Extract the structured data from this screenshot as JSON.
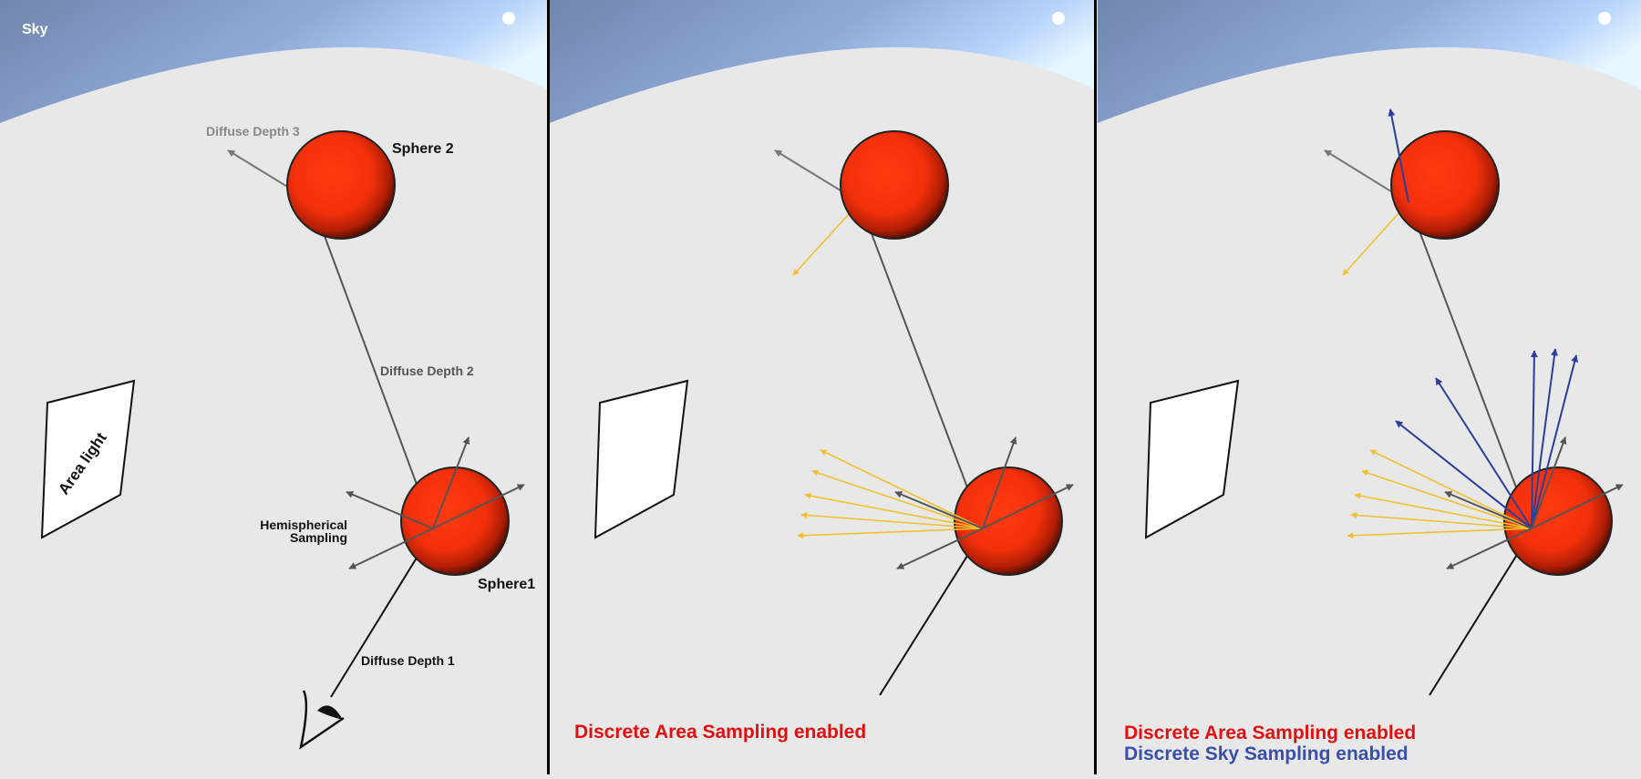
{
  "panels": [
    {
      "id": "panel-1",
      "labels": {
        "sky": "Sky",
        "diffuse_depth_3": "Diffuse Depth 3",
        "sphere_2": "Sphere 2",
        "diffuse_depth_2": "Diffuse Depth 2",
        "hemispherical_line1": "Hemispherical",
        "hemispherical_line2": "Sampling",
        "sphere_1": "Sphere1",
        "diffuse_depth_1": "Diffuse Depth 1",
        "area_light": "Area light"
      }
    },
    {
      "id": "panel-2",
      "caption_area": "Discrete Area Sampling enabled"
    },
    {
      "id": "panel-3",
      "caption_area": "Discrete Area Sampling enabled",
      "caption_sky": "Discrete Sky Sampling enabled"
    }
  ],
  "colors": {
    "background": "#e8e8e8",
    "sky_dark": "#7389b0",
    "sky_light": "#d8f0ff",
    "sphere": "#ff3a10",
    "ray": "#555555",
    "area_sample": "#f0c030",
    "sky_sample": "#2a3f9c",
    "caption_area": "#e01010",
    "caption_sky": "#3a4fa8",
    "divider": "#000000"
  }
}
